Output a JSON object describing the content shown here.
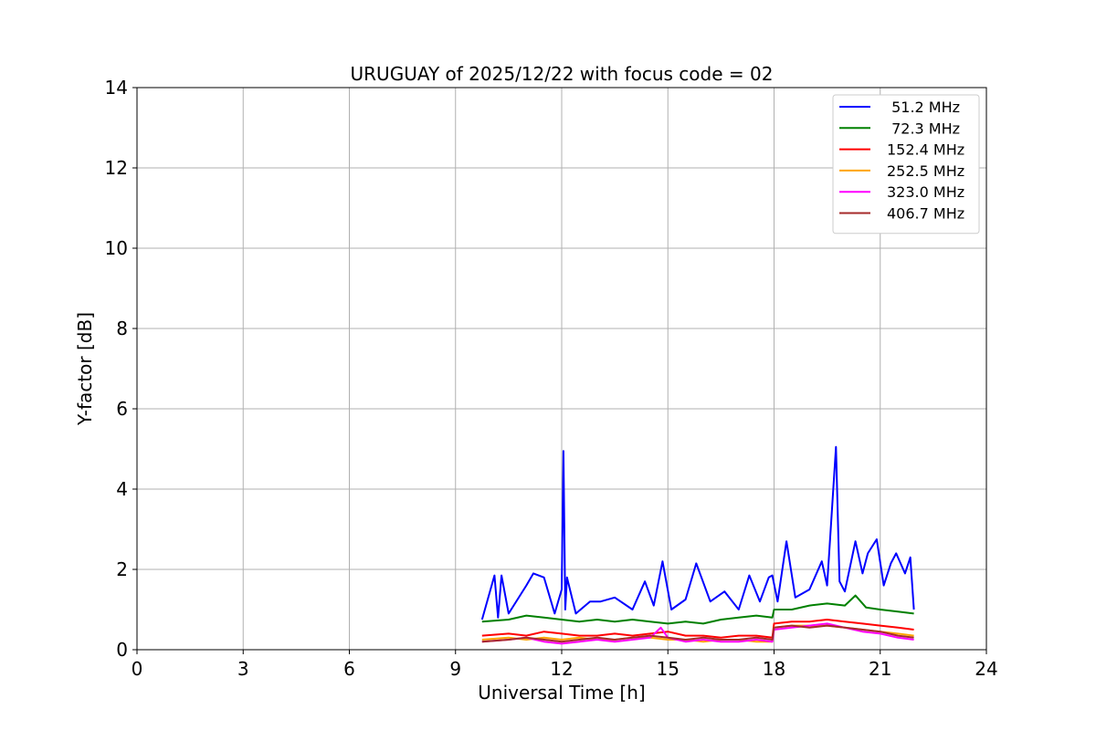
{
  "chart_data": {
    "type": "line",
    "title": "URUGUAY of 2025/12/22 with focus code = 02",
    "xlabel": "Universal Time [h]",
    "ylabel": "Y-factor [dB]",
    "xlim": [
      0,
      24
    ],
    "ylim": [
      0,
      14
    ],
    "xticks": [
      0,
      3,
      6,
      9,
      12,
      15,
      18,
      21,
      24
    ],
    "yticks": [
      0,
      2,
      4,
      6,
      8,
      10,
      12,
      14
    ],
    "grid": true,
    "legend_position": "top-right",
    "series": [
      {
        "name": " 51.2 MHz",
        "color": "#0000ff",
        "points": [
          [
            9.75,
            0.75
          ],
          [
            10.1,
            1.85
          ],
          [
            10.2,
            0.8
          ],
          [
            10.3,
            1.85
          ],
          [
            10.5,
            0.9
          ],
          [
            11.0,
            1.6
          ],
          [
            11.2,
            1.9
          ],
          [
            11.5,
            1.8
          ],
          [
            11.8,
            0.9
          ],
          [
            12.0,
            1.5
          ],
          [
            12.05,
            4.95
          ],
          [
            12.1,
            1.0
          ],
          [
            12.15,
            1.8
          ],
          [
            12.4,
            0.9
          ],
          [
            12.8,
            1.2
          ],
          [
            13.1,
            1.2
          ],
          [
            13.5,
            1.3
          ],
          [
            14.0,
            1.0
          ],
          [
            14.35,
            1.7
          ],
          [
            14.6,
            1.1
          ],
          [
            14.85,
            2.2
          ],
          [
            15.1,
            1.0
          ],
          [
            15.5,
            1.25
          ],
          [
            15.8,
            2.15
          ],
          [
            16.2,
            1.2
          ],
          [
            16.6,
            1.45
          ],
          [
            17.0,
            1.0
          ],
          [
            17.3,
            1.85
          ],
          [
            17.6,
            1.2
          ],
          [
            17.85,
            1.8
          ],
          [
            17.95,
            1.85
          ],
          [
            18.1,
            1.2
          ],
          [
            18.35,
            2.7
          ],
          [
            18.6,
            1.3
          ],
          [
            19.0,
            1.5
          ],
          [
            19.35,
            2.2
          ],
          [
            19.5,
            1.6
          ],
          [
            19.75,
            5.05
          ],
          [
            19.85,
            1.7
          ],
          [
            20.0,
            1.45
          ],
          [
            20.3,
            2.7
          ],
          [
            20.5,
            1.9
          ],
          [
            20.65,
            2.4
          ],
          [
            20.9,
            2.75
          ],
          [
            21.1,
            1.6
          ],
          [
            21.3,
            2.15
          ],
          [
            21.45,
            2.4
          ],
          [
            21.7,
            1.9
          ],
          [
            21.85,
            2.3
          ],
          [
            21.95,
            1.0
          ]
        ]
      },
      {
        "name": " 72.3 MHz",
        "color": "#008000",
        "points": [
          [
            9.75,
            0.7
          ],
          [
            10.5,
            0.75
          ],
          [
            11.0,
            0.85
          ],
          [
            11.5,
            0.8
          ],
          [
            12.0,
            0.75
          ],
          [
            12.5,
            0.7
          ],
          [
            13.0,
            0.75
          ],
          [
            13.5,
            0.7
          ],
          [
            14.0,
            0.75
          ],
          [
            14.5,
            0.7
          ],
          [
            15.0,
            0.65
          ],
          [
            15.5,
            0.7
          ],
          [
            16.0,
            0.65
          ],
          [
            16.5,
            0.75
          ],
          [
            17.0,
            0.8
          ],
          [
            17.5,
            0.85
          ],
          [
            17.95,
            0.8
          ],
          [
            18.0,
            1.0
          ],
          [
            18.5,
            1.0
          ],
          [
            19.0,
            1.1
          ],
          [
            19.5,
            1.15
          ],
          [
            20.0,
            1.1
          ],
          [
            20.3,
            1.35
          ],
          [
            20.6,
            1.05
          ],
          [
            21.0,
            1.0
          ],
          [
            21.5,
            0.95
          ],
          [
            21.95,
            0.9
          ]
        ]
      },
      {
        "name": "152.4 MHz",
        "color": "#ff0000",
        "points": [
          [
            9.75,
            0.35
          ],
          [
            10.5,
            0.4
          ],
          [
            11.0,
            0.35
          ],
          [
            11.5,
            0.45
          ],
          [
            12.0,
            0.4
          ],
          [
            12.5,
            0.35
          ],
          [
            13.0,
            0.35
          ],
          [
            13.5,
            0.4
          ],
          [
            14.0,
            0.35
          ],
          [
            14.5,
            0.4
          ],
          [
            15.0,
            0.45
          ],
          [
            15.5,
            0.35
          ],
          [
            16.0,
            0.35
          ],
          [
            16.5,
            0.3
          ],
          [
            17.0,
            0.35
          ],
          [
            17.5,
            0.35
          ],
          [
            17.95,
            0.3
          ],
          [
            18.0,
            0.65
          ],
          [
            18.5,
            0.7
          ],
          [
            19.0,
            0.7
          ],
          [
            19.5,
            0.75
          ],
          [
            20.0,
            0.7
          ],
          [
            20.5,
            0.65
          ],
          [
            21.0,
            0.6
          ],
          [
            21.5,
            0.55
          ],
          [
            21.95,
            0.5
          ]
        ]
      },
      {
        "name": "252.5 MHz",
        "color": "#ffa500",
        "points": [
          [
            9.75,
            0.25
          ],
          [
            10.5,
            0.3
          ],
          [
            11.0,
            0.25
          ],
          [
            11.5,
            0.3
          ],
          [
            12.0,
            0.25
          ],
          [
            12.5,
            0.3
          ],
          [
            13.0,
            0.25
          ],
          [
            13.5,
            0.25
          ],
          [
            14.0,
            0.3
          ],
          [
            14.5,
            0.3
          ],
          [
            15.0,
            0.25
          ],
          [
            15.5,
            0.25
          ],
          [
            16.0,
            0.2
          ],
          [
            16.5,
            0.25
          ],
          [
            17.0,
            0.25
          ],
          [
            17.5,
            0.2
          ],
          [
            17.95,
            0.2
          ],
          [
            18.0,
            0.55
          ],
          [
            18.5,
            0.6
          ],
          [
            19.0,
            0.6
          ],
          [
            19.5,
            0.6
          ],
          [
            20.0,
            0.55
          ],
          [
            20.5,
            0.5
          ],
          [
            21.0,
            0.45
          ],
          [
            21.5,
            0.4
          ],
          [
            21.95,
            0.35
          ]
        ]
      },
      {
        "name": "323.0 MHz",
        "color": "#ff00ff",
        "points": [
          [
            9.75,
            0.2
          ],
          [
            10.5,
            0.25
          ],
          [
            11.0,
            0.3
          ],
          [
            11.5,
            0.2
          ],
          [
            12.0,
            0.15
          ],
          [
            12.5,
            0.2
          ],
          [
            13.0,
            0.25
          ],
          [
            13.5,
            0.2
          ],
          [
            14.0,
            0.25
          ],
          [
            14.5,
            0.3
          ],
          [
            14.8,
            0.55
          ],
          [
            15.0,
            0.3
          ],
          [
            15.5,
            0.2
          ],
          [
            16.0,
            0.25
          ],
          [
            16.5,
            0.2
          ],
          [
            17.0,
            0.2
          ],
          [
            17.5,
            0.25
          ],
          [
            17.95,
            0.2
          ],
          [
            18.0,
            0.5
          ],
          [
            18.5,
            0.55
          ],
          [
            19.0,
            0.6
          ],
          [
            19.5,
            0.65
          ],
          [
            20.0,
            0.55
          ],
          [
            20.5,
            0.45
          ],
          [
            21.0,
            0.4
          ],
          [
            21.5,
            0.3
          ],
          [
            21.95,
            0.25
          ]
        ]
      },
      {
        "name": "406.7 MHz",
        "color": "#a52a2a",
        "points": [
          [
            9.75,
            0.2
          ],
          [
            10.5,
            0.25
          ],
          [
            11.0,
            0.3
          ],
          [
            11.5,
            0.25
          ],
          [
            12.0,
            0.2
          ],
          [
            12.5,
            0.25
          ],
          [
            13.0,
            0.3
          ],
          [
            13.5,
            0.25
          ],
          [
            14.0,
            0.3
          ],
          [
            14.5,
            0.35
          ],
          [
            15.0,
            0.3
          ],
          [
            15.5,
            0.25
          ],
          [
            16.0,
            0.3
          ],
          [
            16.5,
            0.25
          ],
          [
            17.0,
            0.25
          ],
          [
            17.5,
            0.3
          ],
          [
            17.95,
            0.25
          ],
          [
            18.0,
            0.55
          ],
          [
            18.5,
            0.6
          ],
          [
            19.0,
            0.55
          ],
          [
            19.5,
            0.6
          ],
          [
            20.0,
            0.55
          ],
          [
            20.5,
            0.5
          ],
          [
            21.0,
            0.45
          ],
          [
            21.5,
            0.35
          ],
          [
            21.95,
            0.3
          ]
        ]
      }
    ]
  }
}
